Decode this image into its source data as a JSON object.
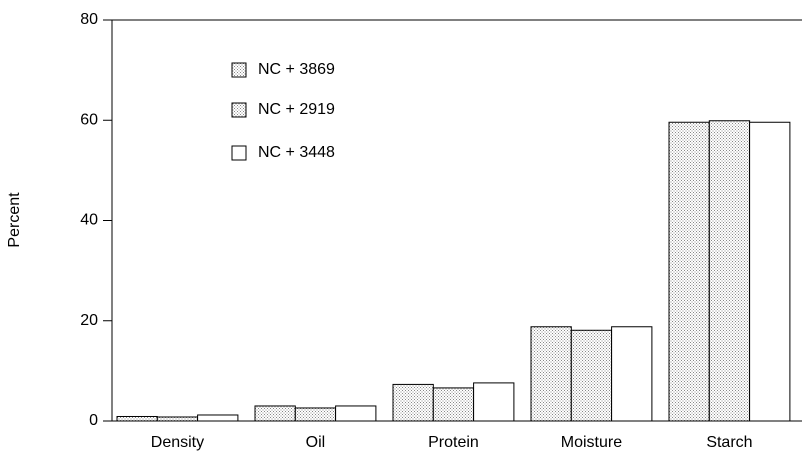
{
  "chart_data": {
    "type": "bar",
    "y_label": "Percent",
    "categories": [
      "Density",
      "Oil",
      "Protein",
      "Moisture",
      "Starch"
    ],
    "series": [
      {
        "name": "NC + 3869",
        "color": "#d6d6d6",
        "values": [
          0.9,
          3.0,
          7.3,
          18.8,
          59.6
        ]
      },
      {
        "name": "NC + 2919",
        "color": "#cacaca",
        "values": [
          0.8,
          2.6,
          6.6,
          18.1,
          59.9
        ]
      },
      {
        "name": "NC + 3448",
        "color": "#ffffff",
        "values": [
          1.2,
          3.0,
          7.6,
          18.8,
          59.6
        ]
      }
    ],
    "ylim": [
      0,
      80
    ],
    "yticks": [
      0,
      20,
      40,
      60,
      80
    ],
    "legend": "top-left"
  }
}
